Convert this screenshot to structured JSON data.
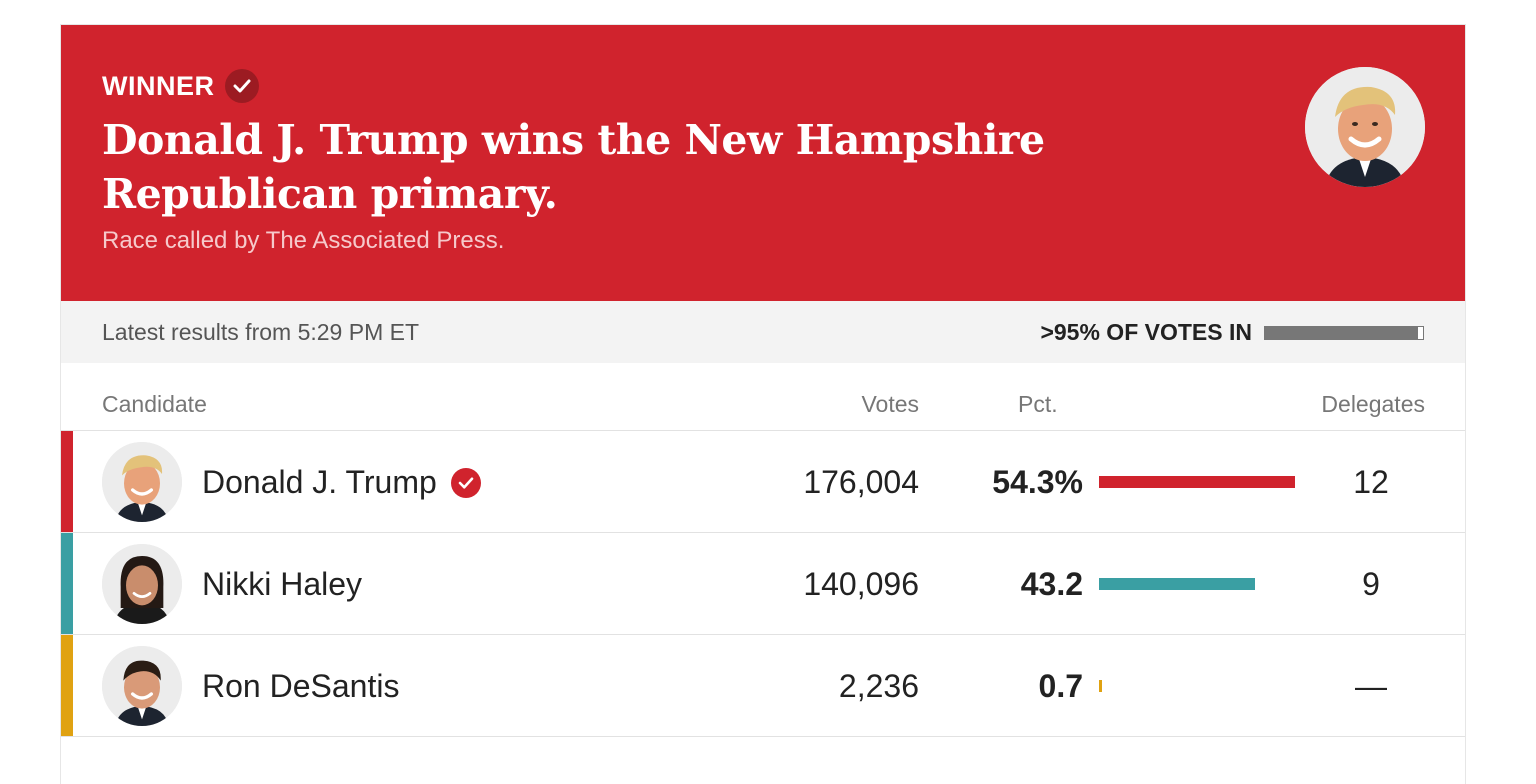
{
  "banner": {
    "label": "WINNER",
    "headline": "Donald J. Trump wins the New Hampshire Republican primary.",
    "subtext": "Race called by The Associated Press."
  },
  "status": {
    "latest": "Latest results from 5:29 PM ET",
    "votes_in": ">95% OF VOTES IN",
    "votes_in_fraction": 0.97
  },
  "table": {
    "headers": {
      "candidate": "Candidate",
      "votes": "Votes",
      "pct": "Pct.",
      "delegates": "Delegates"
    },
    "rows": [
      {
        "name": "Donald J. Trump",
        "votes": "176,004",
        "pct": "54.3%",
        "pct_value": 54.3,
        "delegates": "12",
        "color": "#d0232d",
        "winner": true
      },
      {
        "name": "Nikki Haley",
        "votes": "140,096",
        "pct": "43.2",
        "pct_value": 43.2,
        "delegates": "9",
        "color": "#3a9fa3",
        "winner": false
      },
      {
        "name": "Ron DeSantis",
        "votes": "2,236",
        "pct": "0.7",
        "pct_value": 0.7,
        "delegates": "—",
        "color": "#e0a211",
        "winner": false
      }
    ]
  },
  "colors": {
    "banner": "#d0232d",
    "progress": "#777777"
  },
  "icons": {
    "winner_check": "check-circle-icon",
    "avatar": "candidate-photo-icon"
  }
}
